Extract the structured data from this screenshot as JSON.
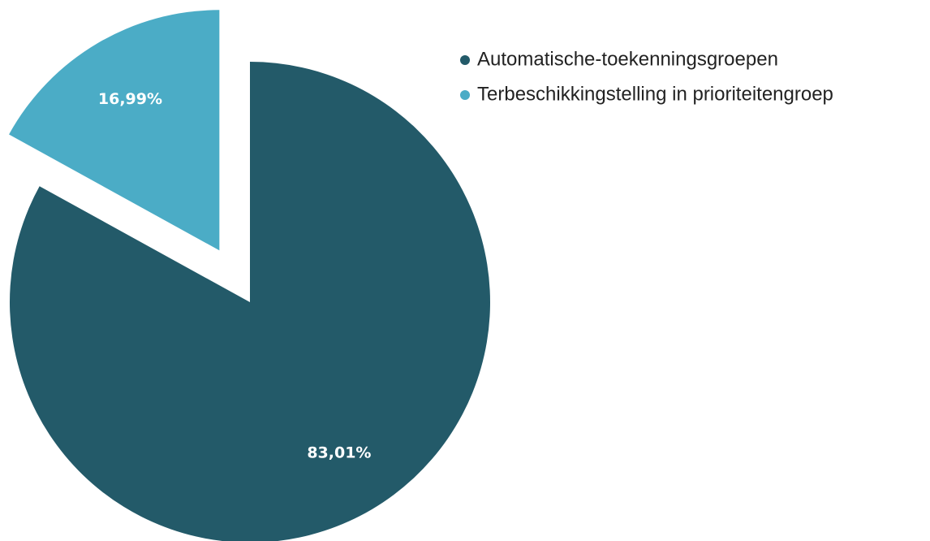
{
  "chart_data": {
    "type": "pie",
    "categories": [
      "Automatische-toekenningsgroepen",
      "Terbeschikkingstelling in prioriteitengroep"
    ],
    "values": [
      83.01,
      16.99
    ],
    "value_labels": [
      "83,01%",
      "16,99%"
    ],
    "colors": [
      "#235a69",
      "#4bacc6"
    ],
    "exploded": [
      false,
      true
    ],
    "legend": "top-right"
  }
}
